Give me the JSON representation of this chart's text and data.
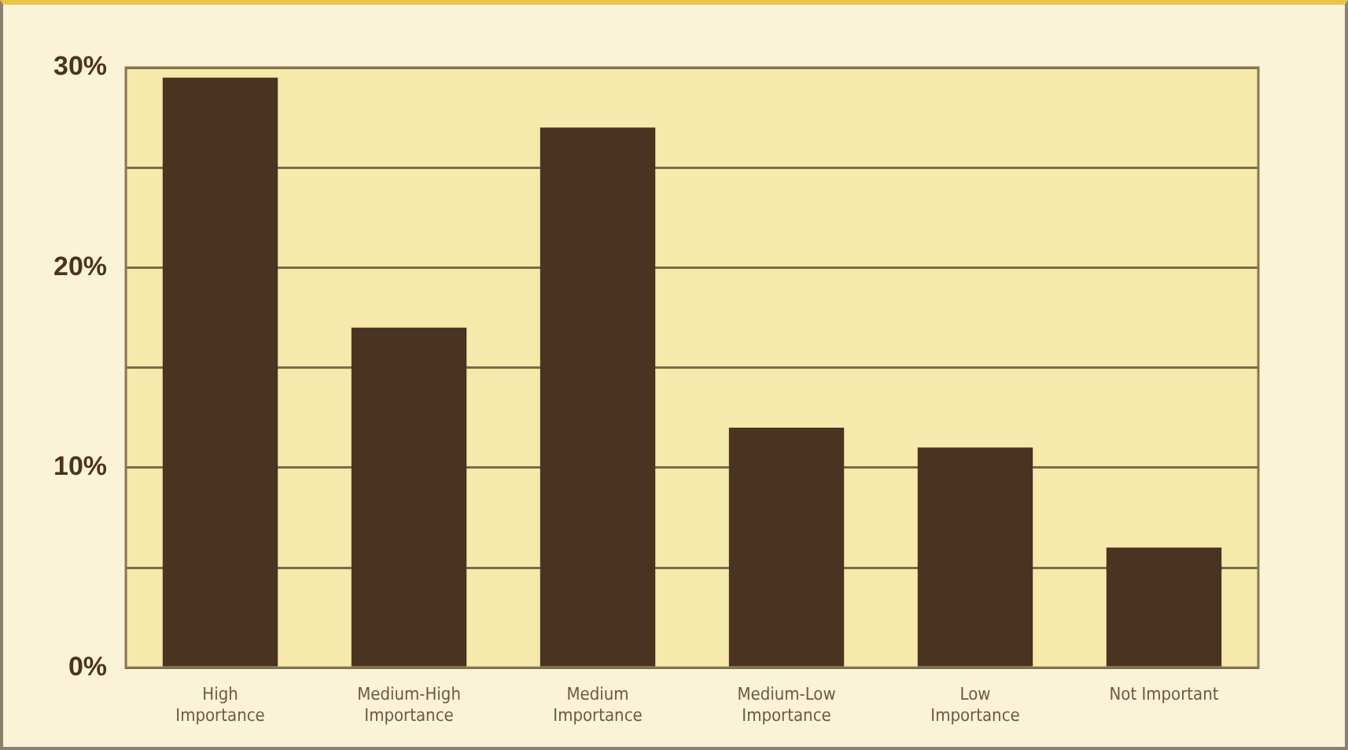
{
  "chart_data": {
    "type": "bar",
    "categories": [
      "High Importance",
      "Medium-High Importance",
      "Medium Importance",
      "Medium-Low Importance",
      "Low Importance",
      "Not Important"
    ],
    "values": [
      29.5,
      17,
      27,
      12,
      11,
      6
    ],
    "color": "#4b3322",
    "ylim": [
      0,
      30
    ],
    "yticks": [
      {
        "value": 0,
        "label": "0%"
      },
      {
        "value": 5,
        "label": null
      },
      {
        "value": 10,
        "label": "10%"
      },
      {
        "value": 15,
        "label": null
      },
      {
        "value": 20,
        "label": "20%"
      },
      {
        "value": 25,
        "label": null
      },
      {
        "value": 30,
        "label": "30%"
      }
    ],
    "grid": "y",
    "legend": false
  }
}
